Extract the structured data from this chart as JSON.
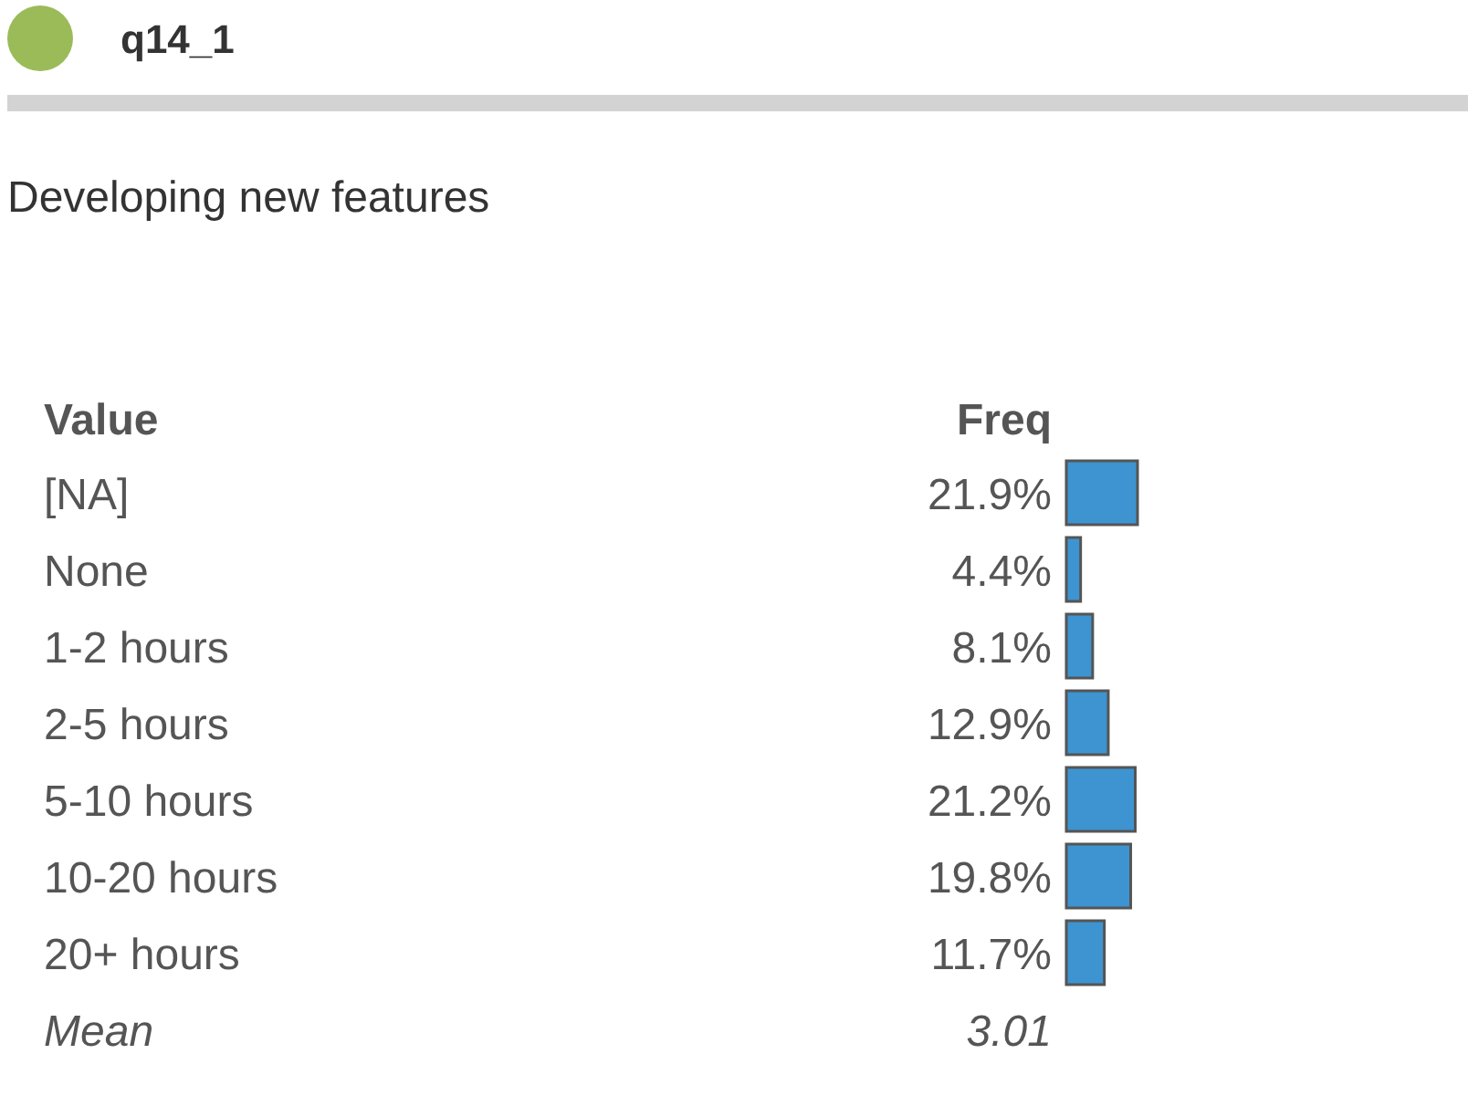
{
  "chart_data": {
    "type": "bar",
    "orientation": "horizontal",
    "title": "q14_1",
    "subtitle": "Developing new features",
    "ylabel": "Value",
    "xlabel": "Freq",
    "categories": [
      "[NA]",
      "None",
      "1-2 hours",
      "2-5 hours",
      "5-10 hours",
      "10-20 hours",
      "20+ hours"
    ],
    "values": [
      21.9,
      4.4,
      8.1,
      12.9,
      21.2,
      19.8,
      11.7
    ],
    "value_labels": [
      "21.9%",
      "4.4%",
      "8.1%",
      "12.9%",
      "21.2%",
      "19.8%",
      "11.7%"
    ],
    "color": "#3d94d1",
    "annotations": [
      "Mean",
      "3.01"
    ]
  }
}
